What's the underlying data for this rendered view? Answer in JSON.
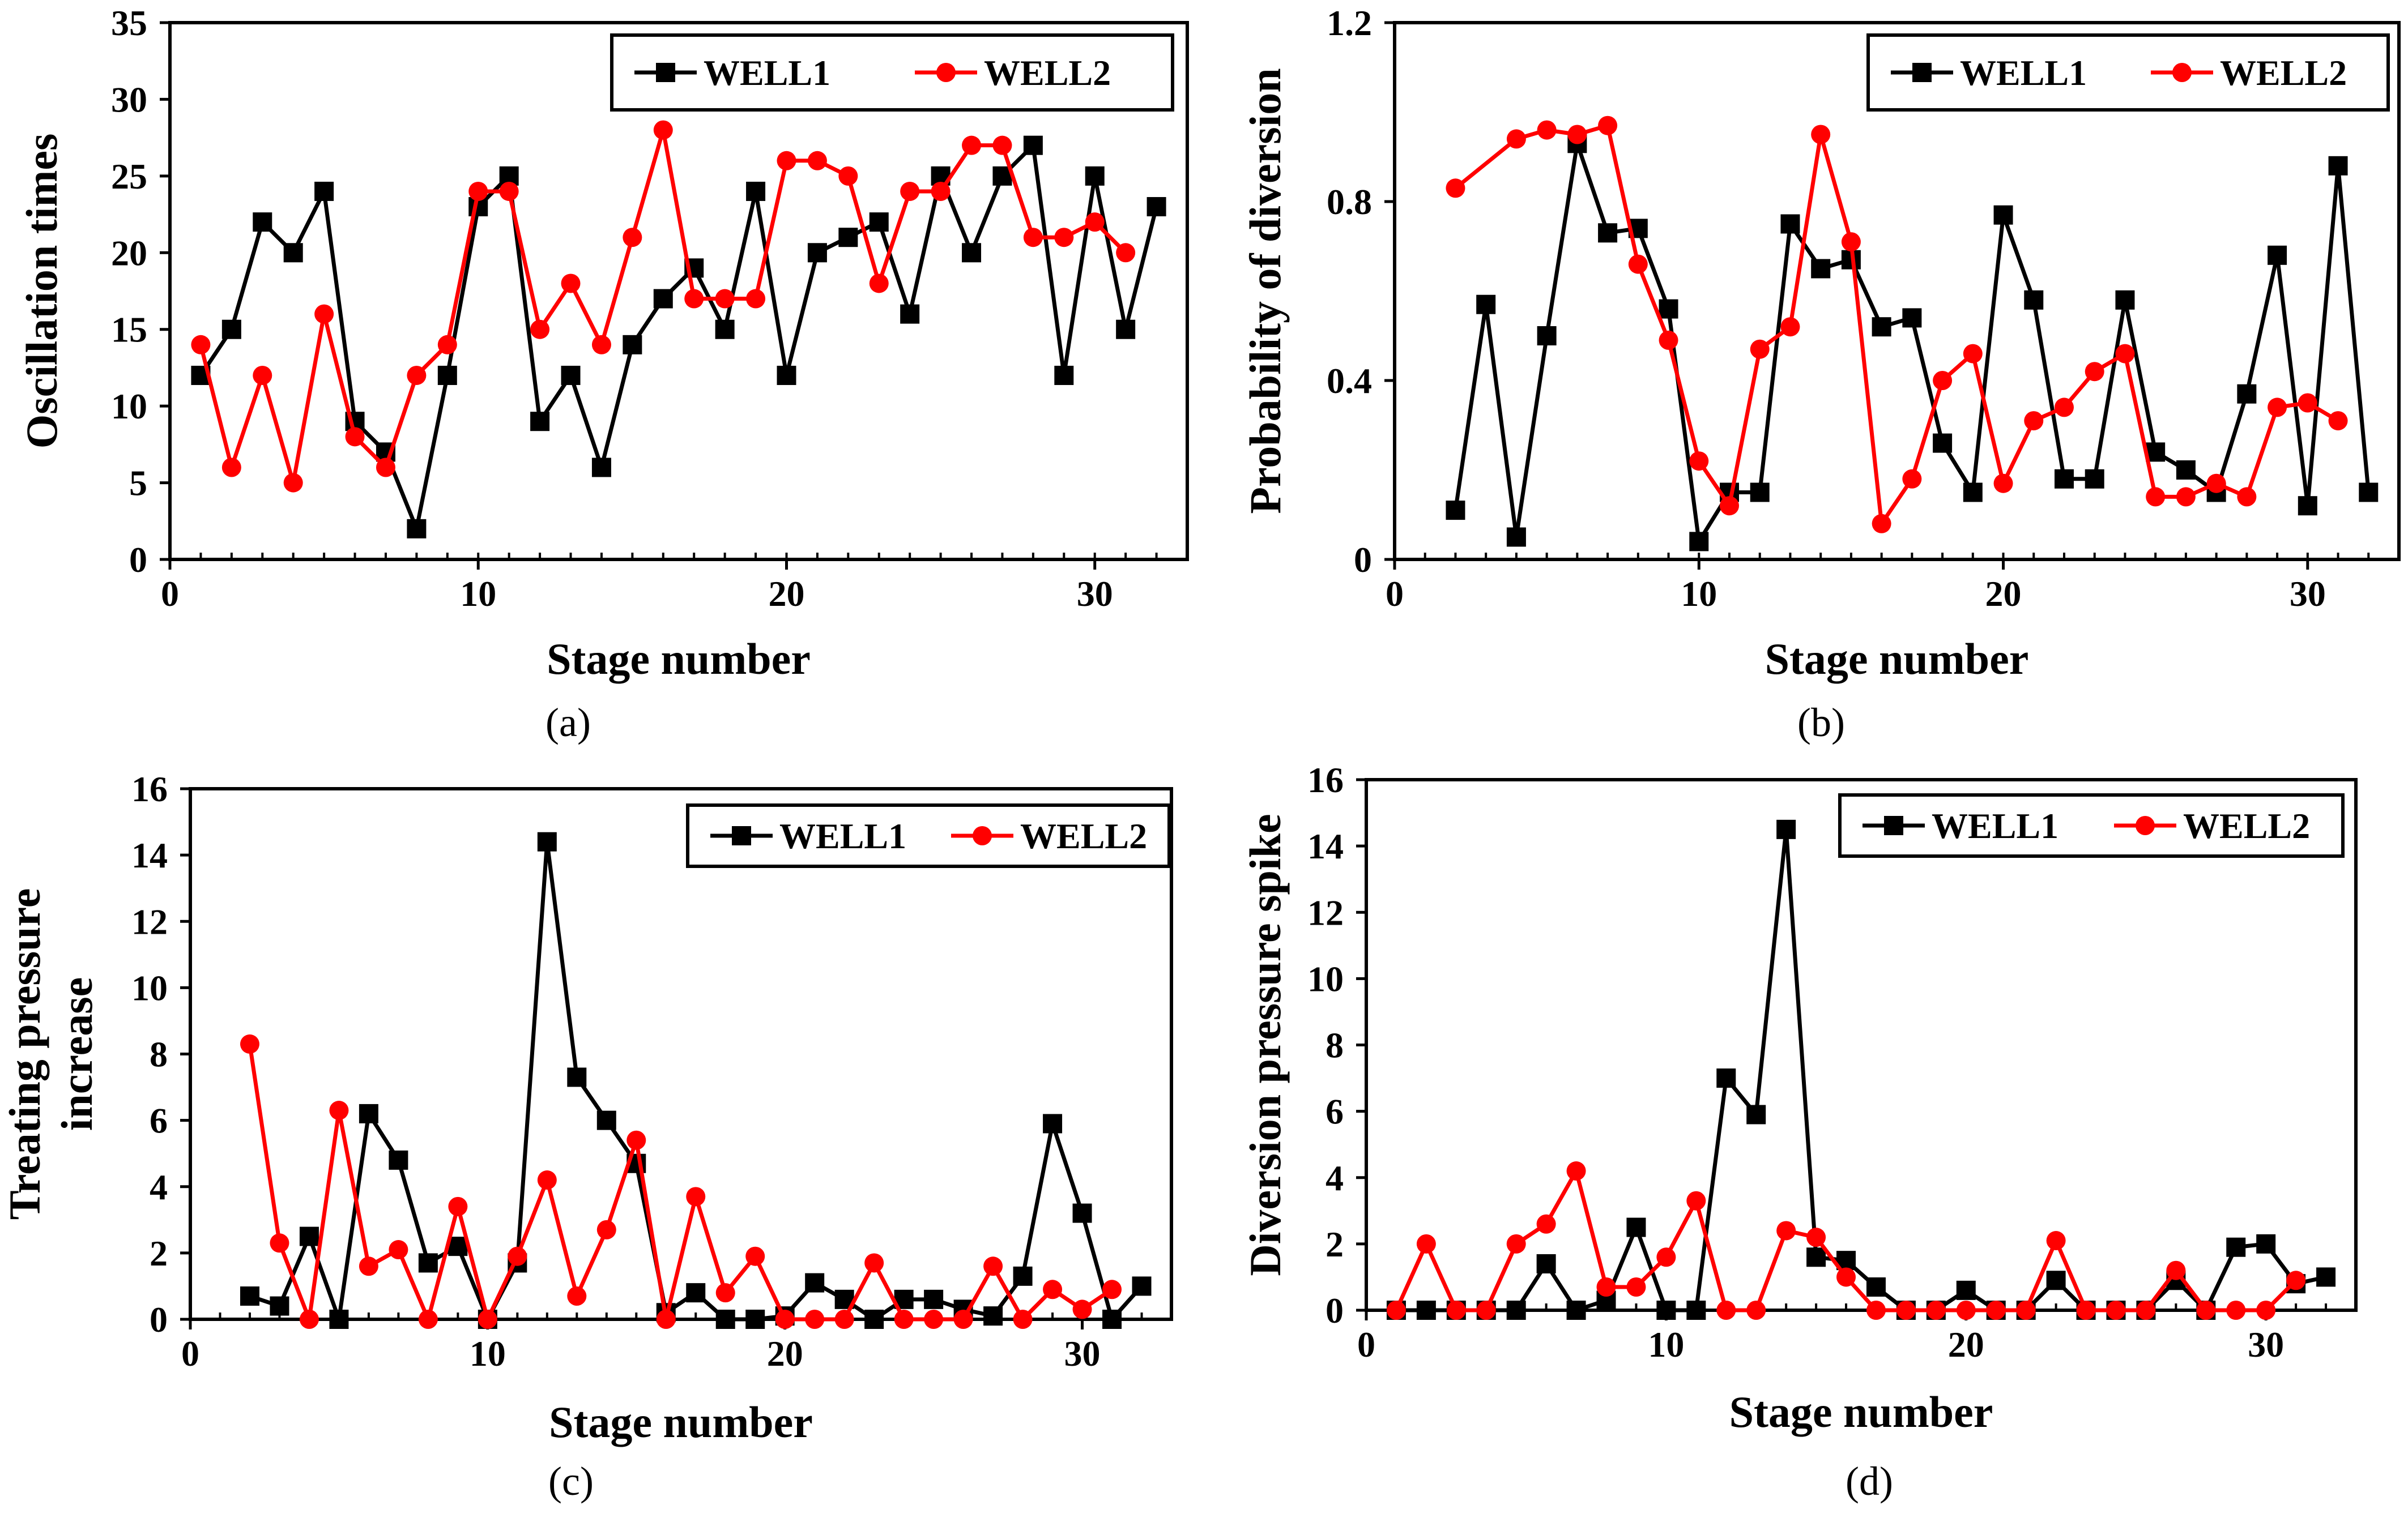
{
  "chart_data": [
    {
      "type": "line",
      "panel_label": "(a)",
      "xlabel": "Stage number",
      "ylabel": "Oscillation times",
      "xlim": [
        0,
        33
      ],
      "ylim": [
        0,
        35
      ],
      "xticks": [
        0,
        10,
        20,
        30
      ],
      "yticks": [
        0,
        5,
        10,
        15,
        20,
        25,
        30,
        35
      ],
      "x_tick_labels": [
        "0",
        "10",
        "20",
        "30"
      ],
      "y_tick_labels": [
        "0",
        "5",
        "10",
        "15",
        "20",
        "25",
        "30",
        "35"
      ],
      "legend_position": "top-right",
      "series": [
        {
          "name": "WELL1",
          "color": "#000000",
          "marker": "square",
          "x": [
            1,
            2,
            3,
            4,
            5,
            6,
            7,
            8,
            9,
            10,
            11,
            12,
            13,
            14,
            15,
            16,
            17,
            18,
            19,
            20,
            21,
            22,
            23,
            24,
            25,
            26,
            27,
            28,
            29,
            30,
            31,
            32
          ],
          "values": [
            12,
            15,
            22,
            20,
            24,
            9,
            7,
            2,
            12,
            23,
            25,
            9,
            12,
            6,
            14,
            17,
            19,
            15,
            24,
            12,
            20,
            21,
            22,
            16,
            25,
            20,
            25,
            27,
            12,
            25,
            15,
            23
          ]
        },
        {
          "name": "WELL2",
          "color": "#ff0000",
          "marker": "circle",
          "x": [
            1,
            2,
            3,
            4,
            5,
            6,
            7,
            8,
            9,
            10,
            11,
            12,
            13,
            14,
            15,
            16,
            17,
            18,
            19,
            20,
            21,
            22,
            23,
            24,
            25,
            26,
            27,
            28,
            29,
            30,
            31
          ],
          "values": [
            14,
            6,
            12,
            5,
            16,
            8,
            6,
            12,
            14,
            24,
            24,
            15,
            18,
            14,
            21,
            28,
            17,
            17,
            17,
            26,
            26,
            25,
            18,
            24,
            24,
            27,
            27,
            21,
            21,
            22,
            20
          ]
        }
      ]
    },
    {
      "type": "line",
      "panel_label": "(b)",
      "xlabel": "Stage number",
      "ylabel": "Probability of diversion",
      "xlim": [
        0,
        33
      ],
      "ylim": [
        0,
        1.2
      ],
      "xticks": [
        0,
        10,
        20,
        30
      ],
      "yticks": [
        0,
        0.4,
        0.8,
        1.2
      ],
      "x_tick_labels": [
        "0",
        "10",
        "20",
        "30"
      ],
      "y_tick_labels": [
        "0",
        "0.4",
        "0.8",
        "1.2"
      ],
      "legend_position": "top-right",
      "series": [
        {
          "name": "WELL1",
          "color": "#000000",
          "marker": "square",
          "x": [
            2,
            3,
            4,
            5,
            6,
            7,
            8,
            9,
            10,
            11,
            12,
            13,
            14,
            15,
            16,
            17,
            18,
            19,
            20,
            21,
            22,
            23,
            24,
            25,
            26,
            27,
            28,
            29,
            30,
            31,
            32
          ],
          "values": [
            0.11,
            0.57,
            0.05,
            0.5,
            0.93,
            0.73,
            0.74,
            0.56,
            0.04,
            0.15,
            0.15,
            0.75,
            0.65,
            0.67,
            0.52,
            0.54,
            0.26,
            0.15,
            0.77,
            0.58,
            0.18,
            0.18,
            0.58,
            0.24,
            0.2,
            0.15,
            0.37,
            0.68,
            0.12,
            0.88,
            0.15
          ]
        },
        {
          "name": "WELL2",
          "color": "#ff0000",
          "marker": "circle",
          "x": [
            2,
            4,
            5,
            6,
            7,
            8,
            9,
            10,
            11,
            12,
            13,
            14,
            15,
            16,
            17,
            18,
            19,
            20,
            21,
            22,
            23,
            24,
            25,
            26,
            27,
            28,
            29,
            30,
            31
          ],
          "values": [
            0.83,
            0.94,
            0.96,
            0.95,
            0.97,
            0.66,
            0.49,
            0.22,
            0.12,
            0.47,
            0.52,
            0.95,
            0.71,
            0.08,
            0.18,
            0.4,
            0.46,
            0.17,
            0.31,
            0.34,
            0.42,
            0.46,
            0.14,
            0.14,
            0.17,
            0.14,
            0.34,
            0.35,
            0.31
          ]
        }
      ]
    },
    {
      "type": "line",
      "panel_label": "(c)",
      "xlabel": "Stage number",
      "ylabel": "Treating pressure increase",
      "ylabel_lines": [
        "Treating pressure",
        "increase"
      ],
      "xlim": [
        0,
        33
      ],
      "ylim": [
        0,
        16
      ],
      "xticks": [
        0,
        10,
        20,
        30
      ],
      "yticks": [
        0,
        2,
        4,
        6,
        8,
        10,
        12,
        14,
        16
      ],
      "x_tick_labels": [
        "0",
        "10",
        "20",
        "30"
      ],
      "y_tick_labels": [
        "0",
        "2",
        "4",
        "6",
        "8",
        "10",
        "12",
        "14",
        "16"
      ],
      "legend_position": "top-right",
      "series": [
        {
          "name": "WELL1",
          "color": "#000000",
          "marker": "square",
          "x": [
            2,
            3,
            4,
            5,
            6,
            7,
            8,
            9,
            10,
            11,
            12,
            13,
            14,
            15,
            16,
            17,
            18,
            19,
            20,
            21,
            22,
            23,
            24,
            25,
            26,
            27,
            28,
            29,
            30,
            31,
            32
          ],
          "values": [
            0.7,
            0.4,
            2.5,
            0.0,
            6.2,
            4.8,
            1.7,
            2.2,
            0.0,
            1.7,
            14.4,
            7.3,
            6.0,
            4.7,
            0.2,
            0.8,
            0.0,
            0.0,
            0.1,
            1.1,
            0.6,
            0.0,
            0.6,
            0.6,
            0.3,
            0.1,
            1.3,
            5.9,
            3.2,
            0.0,
            1.0
          ]
        },
        {
          "name": "WELL2",
          "color": "#ff0000",
          "marker": "circle",
          "x": [
            2,
            3,
            4,
            5,
            6,
            7,
            8,
            9,
            10,
            11,
            12,
            13,
            14,
            15,
            16,
            17,
            18,
            19,
            20,
            21,
            22,
            23,
            24,
            25,
            26,
            27,
            28,
            29,
            30,
            31
          ],
          "values": [
            8.3,
            2.3,
            0.0,
            6.3,
            1.6,
            2.1,
            0.0,
            3.4,
            0.0,
            1.9,
            4.2,
            0.7,
            2.7,
            5.4,
            0.0,
            3.7,
            0.8,
            1.9,
            0.0,
            0.0,
            0.0,
            1.7,
            0.0,
            0.0,
            0.0,
            1.6,
            0.0,
            0.9,
            0.3,
            0.9
          ]
        }
      ]
    },
    {
      "type": "line",
      "panel_label": "(d)",
      "xlabel": "Stage number",
      "ylabel": "Diversion pressure spike",
      "xlim": [
        0,
        33
      ],
      "ylim": [
        0,
        16
      ],
      "xticks": [
        0,
        10,
        20,
        30
      ],
      "yticks": [
        0,
        2,
        4,
        6,
        8,
        10,
        12,
        14,
        16
      ],
      "x_tick_labels": [
        "0",
        "10",
        "20",
        "30"
      ],
      "y_tick_labels": [
        "0",
        "2",
        "4",
        "6",
        "8",
        "10",
        "12",
        "14",
        "16"
      ],
      "legend_position": "top-right",
      "series": [
        {
          "name": "WELL1",
          "color": "#000000",
          "marker": "square",
          "x": [
            1,
            2,
            3,
            4,
            5,
            6,
            7,
            8,
            9,
            10,
            11,
            12,
            13,
            14,
            15,
            16,
            17,
            18,
            19,
            20,
            21,
            22,
            23,
            24,
            25,
            26,
            27,
            28,
            29,
            30,
            31,
            32
          ],
          "values": [
            0,
            0,
            0,
            0,
            0,
            1.4,
            0,
            0.3,
            2.5,
            0,
            0,
            7.0,
            5.9,
            14.5,
            1.6,
            1.5,
            0.7,
            0,
            0,
            0.6,
            0,
            0,
            0.9,
            0,
            0,
            0,
            0.9,
            0,
            1.9,
            2.0,
            0.8,
            1.0
          ]
        },
        {
          "name": "WELL2",
          "color": "#ff0000",
          "marker": "circle",
          "x": [
            1,
            2,
            3,
            4,
            5,
            6,
            7,
            8,
            9,
            10,
            11,
            12,
            13,
            14,
            15,
            16,
            17,
            18,
            19,
            20,
            21,
            22,
            23,
            24,
            25,
            26,
            27,
            28,
            29,
            30,
            31
          ],
          "values": [
            0,
            2.0,
            0,
            0,
            2.0,
            2.6,
            4.2,
            0.7,
            0.7,
            1.6,
            3.3,
            0,
            0,
            2.4,
            2.2,
            1.0,
            0,
            0,
            0,
            0,
            0,
            0,
            2.1,
            0,
            0,
            0,
            1.2,
            0,
            0,
            0,
            0.9
          ]
        }
      ]
    }
  ]
}
